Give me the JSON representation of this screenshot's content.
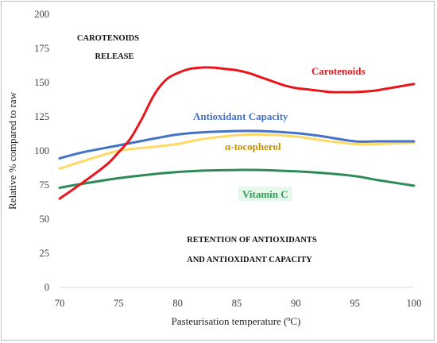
{
  "chart_data": {
    "type": "line",
    "xlabel": "Pasteurisation temperature (ºC)",
    "ylabel": "Relative % compared to raw",
    "xlim": [
      70,
      100
    ],
    "ylim": [
      0,
      200
    ],
    "x_ticks": [
      "70",
      "75",
      "80",
      "85",
      "90",
      "95",
      "100"
    ],
    "y_ticks": [
      "0",
      "25",
      "50",
      "75",
      "100",
      "125",
      "150",
      "175",
      "200"
    ],
    "grid": false,
    "annotations": {
      "carotenoids_release_line1": "CAROTENOIDS",
      "carotenoids_release_line2": "RELEASE",
      "retention_line1": "RETENTION OF ANTIOXIDANTS",
      "retention_line2": "AND ANTIOXIDANT CAPACITY"
    },
    "series": [
      {
        "name": "Carotenoids",
        "color": "#e8151b",
        "x": [
          70,
          72,
          74,
          75,
          76,
          77,
          78,
          79,
          80,
          81,
          82,
          83,
          84,
          85,
          86,
          87,
          88,
          89,
          90,
          91,
          92,
          93,
          94,
          95,
          96,
          97,
          98,
          99,
          100
        ],
        "y": [
          65,
          77,
          90,
          99,
          109,
          124,
          141,
          152,
          157,
          160,
          161,
          161,
          160,
          159,
          157,
          154,
          151,
          148,
          146,
          145,
          144,
          143,
          143,
          143,
          143.5,
          144.5,
          146,
          147.5,
          149
        ]
      },
      {
        "name": "Antioxidant Capacity",
        "color": "#4472c4",
        "x": [
          70,
          72,
          75,
          78,
          80,
          82,
          85,
          87,
          90,
          92,
          95,
          97,
          100
        ],
        "y": [
          94.5,
          99,
          104,
          109,
          112,
          113.5,
          114.5,
          114.5,
          113,
          111,
          107,
          107,
          107
        ]
      },
      {
        "name": "α-tocopherol",
        "color": "#ffd966",
        "x": [
          70,
          72,
          75,
          78,
          80,
          82,
          85,
          87,
          90,
          92,
          95,
          97,
          100
        ],
        "y": [
          87,
          92.5,
          100,
          103,
          105,
          108.5,
          111.5,
          112,
          110.5,
          108,
          105,
          105,
          106
        ]
      },
      {
        "name": "Vitamin C",
        "color": "#2e8b57",
        "x": [
          70,
          72,
          75,
          78,
          80,
          82,
          85,
          87,
          90,
          92,
          95,
          97,
          100
        ],
        "y": [
          73,
          76,
          80,
          83,
          84.5,
          85.5,
          86,
          86,
          85,
          84,
          81.5,
          78.5,
          74.5
        ]
      }
    ]
  }
}
